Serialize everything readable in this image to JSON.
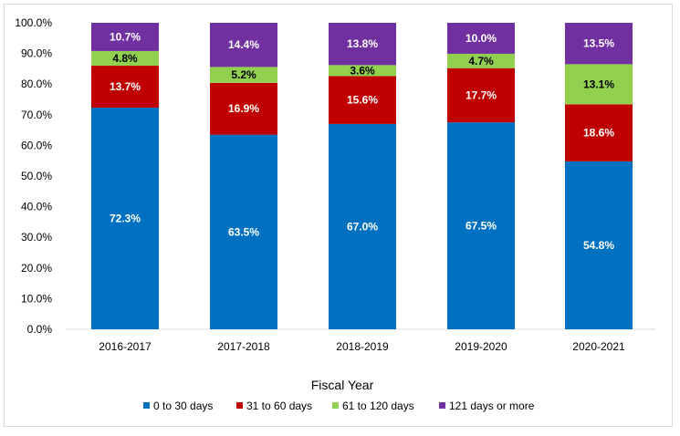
{
  "chart_data": {
    "type": "bar",
    "stacked": true,
    "title": "",
    "xlabel": "Fiscal Year",
    "ylabel": "",
    "ylim": [
      0,
      100
    ],
    "yticks": [
      "0.0%",
      "10.0%",
      "20.0%",
      "30.0%",
      "40.0%",
      "50.0%",
      "60.0%",
      "70.0%",
      "80.0%",
      "90.0%",
      "100.0%"
    ],
    "categories": [
      "2016-2017",
      "2017-2018",
      "2018-2019",
      "2019-2020",
      "2020-2021"
    ],
    "series": [
      {
        "name": "0 to 30 days",
        "color": "#0070c0",
        "label_color": "#ffffff",
        "values": [
          72.3,
          63.5,
          67.0,
          67.5,
          54.8
        ],
        "labels": [
          "72.3%",
          "63.5%",
          "67.0%",
          "67.5%",
          "54.8%"
        ]
      },
      {
        "name": "31 to 60 days",
        "color": "#c00000",
        "label_color": "#ffffff",
        "values": [
          13.7,
          16.9,
          15.6,
          17.7,
          18.6
        ],
        "labels": [
          "13.7%",
          "16.9%",
          "15.6%",
          "17.7%",
          "18.6%"
        ]
      },
      {
        "name": "61 to 120 days",
        "color": "#92d050",
        "label_color": "#000000",
        "values": [
          4.8,
          5.2,
          3.6,
          4.7,
          13.1
        ],
        "labels": [
          "4.8%",
          "5.2%",
          "3.6%",
          "4.7%",
          "13.1%"
        ]
      },
      {
        "name": "121 days or more",
        "color": "#7030a0",
        "label_color": "#ffffff",
        "values": [
          10.7,
          14.4,
          13.8,
          10.0,
          13.5
        ],
        "labels": [
          "10.7%",
          "14.4%",
          "13.8%",
          "10.0%",
          "13.5%"
        ]
      }
    ],
    "grid": false,
    "legend_position": "bottom"
  }
}
